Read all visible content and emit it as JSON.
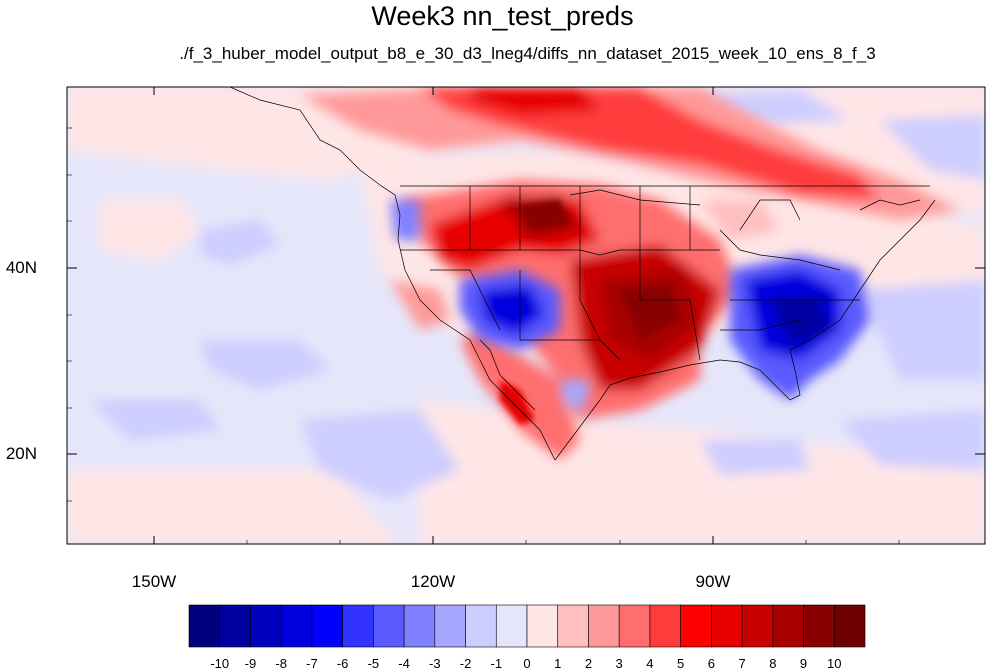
{
  "title": "Week3 nn_test_preds",
  "subtitle": "./f_3_huber_model_output_b8_e_30_d3_lneg4/diffs_nn_dataset_2015_week_10_ens_8_f_3",
  "lat_labels": [
    "40N",
    "20N"
  ],
  "lon_labels": [
    "150W",
    "120W",
    "90W"
  ],
  "colorbar": {
    "labels": [
      "-10",
      "-9",
      "-8",
      "-7",
      "-6",
      "-5",
      "-4",
      "-3",
      "-2",
      "-1",
      "0",
      "1",
      "2",
      "3",
      "4",
      "5",
      "6",
      "7",
      "8",
      "9",
      "10"
    ],
    "colors": [
      "#00007f",
      "#00009f",
      "#0000bf",
      "#0000df",
      "#0000ff",
      "#3333ff",
      "#5a5aff",
      "#8080ff",
      "#a6a6ff",
      "#cdcdff",
      "#e6e6fa",
      "#ffe6e6",
      "#ffbfbf",
      "#ff9999",
      "#ff6e6e",
      "#ff3c3c",
      "#ff0000",
      "#e60000",
      "#c80000",
      "#a60000",
      "#8a0000",
      "#6e0000"
    ]
  },
  "map": {
    "background_color": "#e6e6fa",
    "lon_range_deg": [
      -160,
      -63
    ],
    "lat_range_deg": [
      10,
      59
    ]
  }
}
